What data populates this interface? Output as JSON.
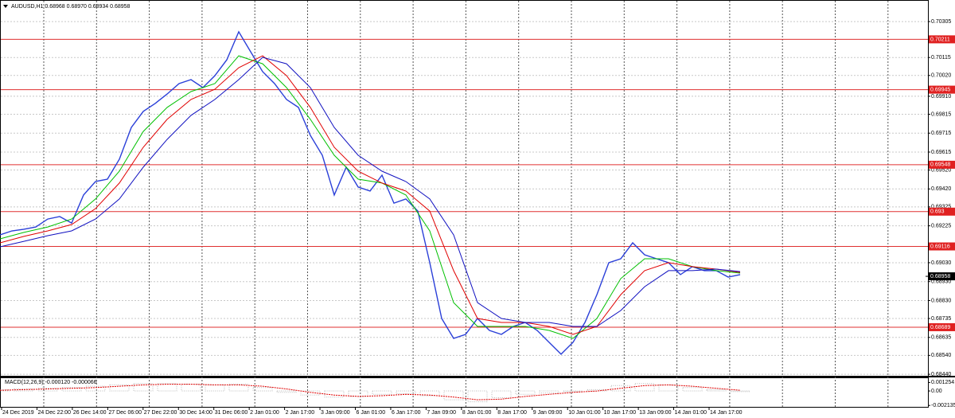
{
  "chart_data": {
    "type": "line",
    "title": "AUDUSD,H1  0.68968 0.68970 0.68934 0.68958",
    "ylim": [
      0.68432,
      0.70419
    ],
    "yticks": [
      {
        "value": 0.70305,
        "label": "0.70305"
      },
      {
        "value": 0.70115,
        "label": "0.70115"
      },
      {
        "value": 0.7002,
        "label": "0.70020"
      },
      {
        "value": 0.6991,
        "label": "0.69910"
      },
      {
        "value": 0.69815,
        "label": "0.69815"
      },
      {
        "value": 0.69715,
        "label": "0.69715"
      },
      {
        "value": 0.69615,
        "label": "0.69615"
      },
      {
        "value": 0.6952,
        "label": "0.69520"
      },
      {
        "value": 0.6942,
        "label": "0.69420"
      },
      {
        "value": 0.69325,
        "label": "0.69325"
      },
      {
        "value": 0.69225,
        "label": "0.69225"
      },
      {
        "value": 0.6903,
        "label": "0.69030"
      },
      {
        "value": 0.6893,
        "label": "0.68930"
      },
      {
        "value": 0.6883,
        "label": "0.68830"
      },
      {
        "value": 0.68735,
        "label": "0.68735"
      },
      {
        "value": 0.68635,
        "label": "0.68635"
      },
      {
        "value": 0.6854,
        "label": "0.68540"
      },
      {
        "value": 0.6844,
        "label": "0.68440"
      }
    ],
    "grid": true,
    "xlabels": [
      "24 Dec 2019",
      "24 Dec 22:00",
      "26 Dec 14:00",
      "27 Dec 06:00",
      "27 Dec 22:00",
      "30 Dec 14:00",
      "31 Dec 06:00",
      "2 Jan 01:00",
      "2 Jan 17:00",
      "3 Jan 09:00",
      "6 Jan 01:00",
      "6 Jan 17:00",
      "7 Jan 09:00",
      "8 Jan 01:00",
      "8 Jan 17:00",
      "9 Jan 09:00",
      "10 Jan 01:00",
      "10 Jan 17:00",
      "13 Jan 09:00",
      "14 Jan 01:00",
      "14 Jan 17:00"
    ],
    "series": [
      {
        "color": "#2a3fd8",
        "values": [
          0.69177,
          0.69198,
          0.69207,
          0.69219,
          0.69261,
          0.69274,
          0.6924,
          0.69388,
          0.69459,
          0.69472,
          0.69577,
          0.69745,
          0.6983,
          0.69872,
          0.69922,
          0.69977,
          0.69998,
          0.69956,
          0.70019,
          0.70103,
          0.70251,
          0.70145,
          0.7004,
          0.69977,
          0.69893,
          0.69851,
          0.69703,
          0.69598,
          0.69388,
          0.69535,
          0.6943,
          0.69409,
          0.69493,
          0.69345,
          0.69367,
          0.69303,
          0.6903,
          0.68735,
          0.6863,
          0.68651,
          0.68735,
          0.68672,
          0.68651,
          0.68693,
          0.68714,
          0.68672,
          0.68609,
          0.68546,
          0.68609,
          0.68714,
          0.68861,
          0.6903,
          0.69051,
          0.69135,
          0.69072,
          0.69051,
          0.6903,
          0.68967,
          0.69009,
          0.68988,
          0.68988,
          0.68954,
          0.68967
        ]
      },
      {
        "color": "#00c000",
        "values": [
          0.69156,
          0.6919,
          0.69219,
          0.69261,
          0.69367,
          0.69514,
          0.69724,
          0.69851,
          0.69935,
          0.69977,
          0.70124,
          0.70082,
          0.69956,
          0.69788,
          0.69598,
          0.69472,
          0.69451,
          0.69388,
          0.69198,
          0.68819,
          0.68693,
          0.68693,
          0.68693,
          0.68672,
          0.6863,
          0.68735,
          0.68946,
          0.69051,
          0.69051,
          0.69009,
          0.68988,
          0.68975
        ]
      },
      {
        "color": "#e00000",
        "values": [
          0.69135,
          0.69169,
          0.69198,
          0.69232,
          0.69316,
          0.69451,
          0.6964,
          0.69788,
          0.69893,
          0.69947,
          0.70061,
          0.70124,
          0.70019,
          0.69851,
          0.6964,
          0.69514,
          0.69451,
          0.69409,
          0.69303,
          0.68988,
          0.68735,
          0.68714,
          0.68714,
          0.68693,
          0.68651,
          0.68693,
          0.68861,
          0.68988,
          0.6903,
          0.69009,
          0.68996,
          0.68979
        ]
      },
      {
        "color": "#1010c0",
        "values": [
          0.69114,
          0.69143,
          0.69173,
          0.69198,
          0.69261,
          0.69367,
          0.69535,
          0.69682,
          0.69809,
          0.69893,
          0.69998,
          0.70116,
          0.70082,
          0.69956,
          0.69745,
          0.69598,
          0.69514,
          0.69459,
          0.69367,
          0.69177,
          0.68819,
          0.68735,
          0.68714,
          0.68714,
          0.68693,
          0.68693,
          0.68777,
          0.68903,
          0.68988,
          0.68988,
          0.68996,
          0.68983
        ]
      }
    ],
    "hlines": [
      0.70211,
      0.69945,
      0.69548,
      0.693,
      0.69116,
      0.68689
    ],
    "last_price": 0.68958,
    "macd": {
      "label": "MACD(12,26,9) -0.000120 -0.000066",
      "ylim": [
        -0.002347,
        0.001889
      ],
      "yticks": [
        {
          "value": 0.001254,
          "label": "0.001254"
        },
        {
          "value": 0,
          "label": "0.00"
        },
        {
          "value": -0.002135,
          "label": "-0.002135"
        }
      ],
      "histogram": [
        0.0002,
        0.0003,
        0.0004,
        0.0005,
        0.0007,
        0.0009,
        0.0011,
        0.0011,
        0.001,
        0.0009,
        0.001,
        0.0005,
        -0.0002,
        -0.0006,
        -0.0009,
        -0.0008,
        -0.0005,
        -0.0004,
        -0.0007,
        -0.0013,
        -0.0016,
        -0.001,
        -0.0005,
        -0.0003,
        -0.0001,
        0.0002,
        0.0008,
        0.0011,
        0.0009,
        0.0005,
        0.0002,
        -0.0001
      ],
      "signal": [
        0.0001,
        0.0002,
        0.0003,
        0.0004,
        0.0005,
        0.0007,
        0.0009,
        0.001,
        0.001,
        0.0009,
        0.0009,
        0.0007,
        0.0003,
        -0.0002,
        -0.0006,
        -0.0008,
        -0.0007,
        -0.0005,
        -0.0006,
        -0.0009,
        -0.0013,
        -0.0012,
        -0.0008,
        -0.0005,
        -0.0002,
        0,
        0.0004,
        0.0008,
        0.0009,
        0.0007,
        0.0004,
        0.0001
      ]
    }
  }
}
